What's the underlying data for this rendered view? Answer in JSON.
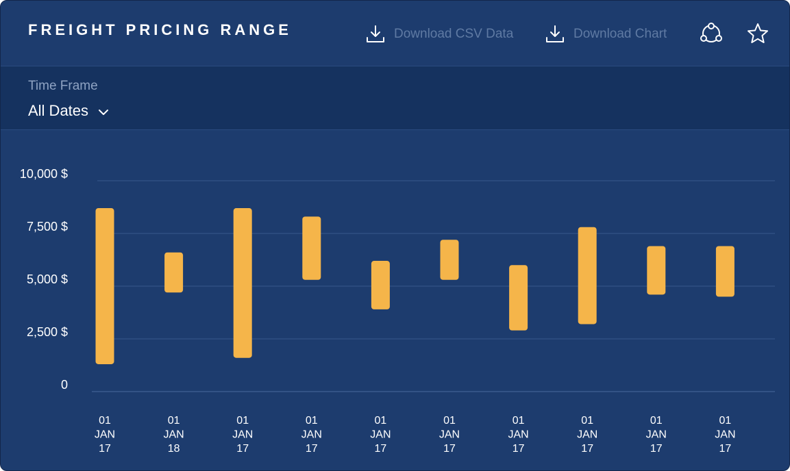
{
  "header": {
    "title": "FREIGHT PRICING RANGE",
    "download_csv_label": "Download CSV Data",
    "download_chart_label": "Download Chart"
  },
  "filter": {
    "label": "Time Frame",
    "selected": "All Dates"
  },
  "colors": {
    "background": "#1d3c6e",
    "filter_bar": "#15325f",
    "bar": "#f5b54a",
    "muted_text": "#5f7aa3"
  },
  "icons": [
    "download-icon",
    "share-icon",
    "star-icon",
    "chevron-down-icon"
  ],
  "chart_data": {
    "type": "bar",
    "subtype": "floating-range",
    "title": "",
    "xlabel": "",
    "ylabel": "",
    "ylim": [
      0,
      10000
    ],
    "y_ticks": [
      {
        "value": 0,
        "label": "0"
      },
      {
        "value": 2500,
        "label": "2,500 $"
      },
      {
        "value": 5000,
        "label": "5,000 $"
      },
      {
        "value": 7500,
        "label": "7,500 $"
      },
      {
        "value": 10000,
        "label": "10,000 $"
      }
    ],
    "grid": true,
    "legend": "none",
    "categories": [
      [
        "01",
        "JAN",
        "17"
      ],
      [
        "01",
        "JAN",
        "18"
      ],
      [
        "01",
        "JAN",
        "17"
      ],
      [
        "01",
        "JAN",
        "17"
      ],
      [
        "01",
        "JAN",
        "17"
      ],
      [
        "01",
        "JAN",
        "17"
      ],
      [
        "01",
        "JAN",
        "17"
      ],
      [
        "01",
        "JAN",
        "17"
      ],
      [
        "01",
        "JAN",
        "17"
      ],
      [
        "01",
        "JAN",
        "17"
      ]
    ],
    "ranges": [
      {
        "low": 1300,
        "high": 8700
      },
      {
        "low": 4700,
        "high": 6600
      },
      {
        "low": 1600,
        "high": 8700
      },
      {
        "low": 5300,
        "high": 8300
      },
      {
        "low": 3900,
        "high": 6200
      },
      {
        "low": 5300,
        "high": 7200
      },
      {
        "low": 2900,
        "high": 6000
      },
      {
        "low": 3200,
        "high": 7800
      },
      {
        "low": 4600,
        "high": 6900
      },
      {
        "low": 4500,
        "high": 6900
      }
    ]
  }
}
